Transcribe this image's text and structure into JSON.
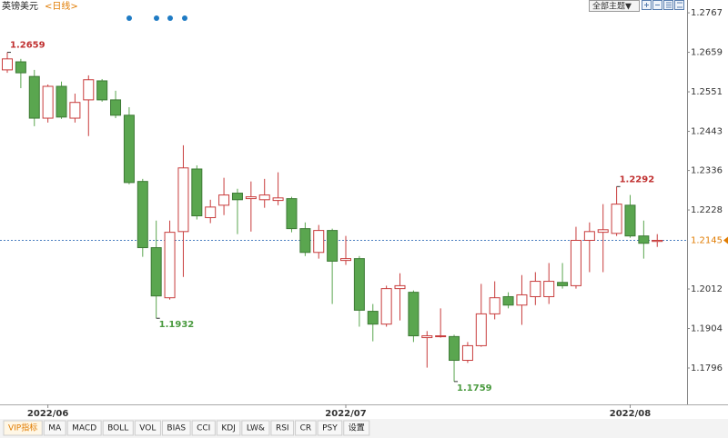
{
  "chart_data": {
    "type": "candlestick",
    "title": "英镑美元",
    "period": "<日线>",
    "theme_button": "全部主题▼",
    "categories": [
      null,
      null,
      null,
      "2022/06",
      null,
      null,
      null,
      null,
      null,
      null,
      null,
      null,
      null,
      null,
      null,
      null,
      null,
      null,
      null,
      null,
      null,
      null,
      null,
      null,
      null,
      "2022/07",
      null,
      null,
      null,
      null,
      null,
      null,
      null,
      null,
      null,
      null,
      null,
      null,
      null,
      null,
      null,
      null,
      null,
      null,
      null,
      null,
      "2022/08",
      null,
      null
    ],
    "open": [
      1.2611,
      1.2633,
      1.2593,
      1.2479,
      1.2566,
      1.2479,
      1.2529,
      1.2581,
      1.2529,
      1.2487,
      1.2306,
      1.2125,
      1.1988,
      1.2169,
      1.234,
      1.2207,
      1.2241,
      1.2274,
      1.2259,
      1.2256,
      1.2254,
      1.2259,
      1.2177,
      1.2112,
      1.2172,
      1.209,
      1.2095,
      1.1951,
      1.1916,
      1.2013,
      1.2003,
      1.1879,
      1.1882,
      1.1882,
      1.1817,
      1.1857,
      1.1944,
      1.1991,
      1.1968,
      1.1991,
      1.1991,
      1.203,
      1.2021,
      1.2145,
      1.2167,
      1.2164,
      1.2241,
      1.2157,
      1.2142
    ],
    "high": [
      1.2659,
      1.2641,
      1.2611,
      1.2571,
      1.2579,
      1.2546,
      1.2596,
      1.2586,
      1.2554,
      1.2509,
      1.2313,
      1.2199,
      1.2199,
      1.2405,
      1.235,
      1.2256,
      1.2316,
      1.2286,
      1.2306,
      1.2313,
      1.2331,
      1.2264,
      1.2194,
      1.2187,
      1.2177,
      1.2157,
      1.2102,
      1.1971,
      1.2021,
      1.2055,
      1.2008,
      1.1897,
      1.1959,
      1.1887,
      1.1867,
      1.2026,
      1.2033,
      1.2003,
      1.205,
      1.2058,
      1.2083,
      1.2083,
      1.2182,
      1.2194,
      1.2244,
      1.2292,
      1.2269,
      1.2199,
      1.2162
    ],
    "low": [
      1.2603,
      1.2561,
      1.2457,
      1.2467,
      1.2477,
      1.2467,
      1.243,
      1.2524,
      1.2479,
      1.2298,
      1.21,
      1.1932,
      1.1983,
      1.2045,
      1.2202,
      1.2192,
      1.2214,
      1.2162,
      1.2169,
      1.2234,
      1.2241,
      1.2167,
      1.2102,
      1.2095,
      1.1971,
      1.2078,
      1.1909,
      1.1869,
      1.1909,
      1.1926,
      1.1867,
      1.1797,
      1.1879,
      1.1759,
      1.181,
      1.1854,
      1.1929,
      1.1959,
      1.1914,
      1.1968,
      1.1971,
      1.2013,
      1.2013,
      1.2058,
      1.2058,
      1.2157,
      1.2152,
      1.2095,
      1.2127
    ],
    "close": [
      1.2641,
      1.2603,
      1.2479,
      1.2566,
      1.2482,
      1.2522,
      1.2584,
      1.2529,
      1.2487,
      1.2303,
      1.2125,
      1.1993,
      1.2167,
      1.2343,
      1.2212,
      1.2236,
      1.2269,
      1.2256,
      1.2264,
      1.2269,
      1.2261,
      1.2177,
      1.2112,
      1.2172,
      1.2088,
      1.2095,
      1.1954,
      1.1916,
      1.2013,
      1.2021,
      1.1884,
      1.1884,
      1.1884,
      1.1817,
      1.1857,
      1.1944,
      1.1988,
      1.1968,
      1.1996,
      1.2033,
      1.2033,
      1.2021,
      1.2145,
      1.2169,
      1.2174,
      1.2244,
      1.2157,
      1.2137,
      1.2145
    ],
    "up_color": "#c83c3c",
    "down_color": "#5aa64f",
    "ylim": [
      1.1709,
      1.2802
    ],
    "yticks": [
      1.1796,
      1.1904,
      1.2012,
      1.2228,
      1.2336,
      1.2443,
      1.2551,
      1.2659,
      1.2767
    ],
    "grid": false,
    "last_price": 1.2145,
    "indicator_tabs": [
      "VIP指标",
      "MA",
      "MACD",
      "BOLL",
      "VOL",
      "BIAS",
      "CCI",
      "KDJ",
      "LW&",
      "RSI",
      "CR",
      "PSY",
      "设置"
    ]
  }
}
